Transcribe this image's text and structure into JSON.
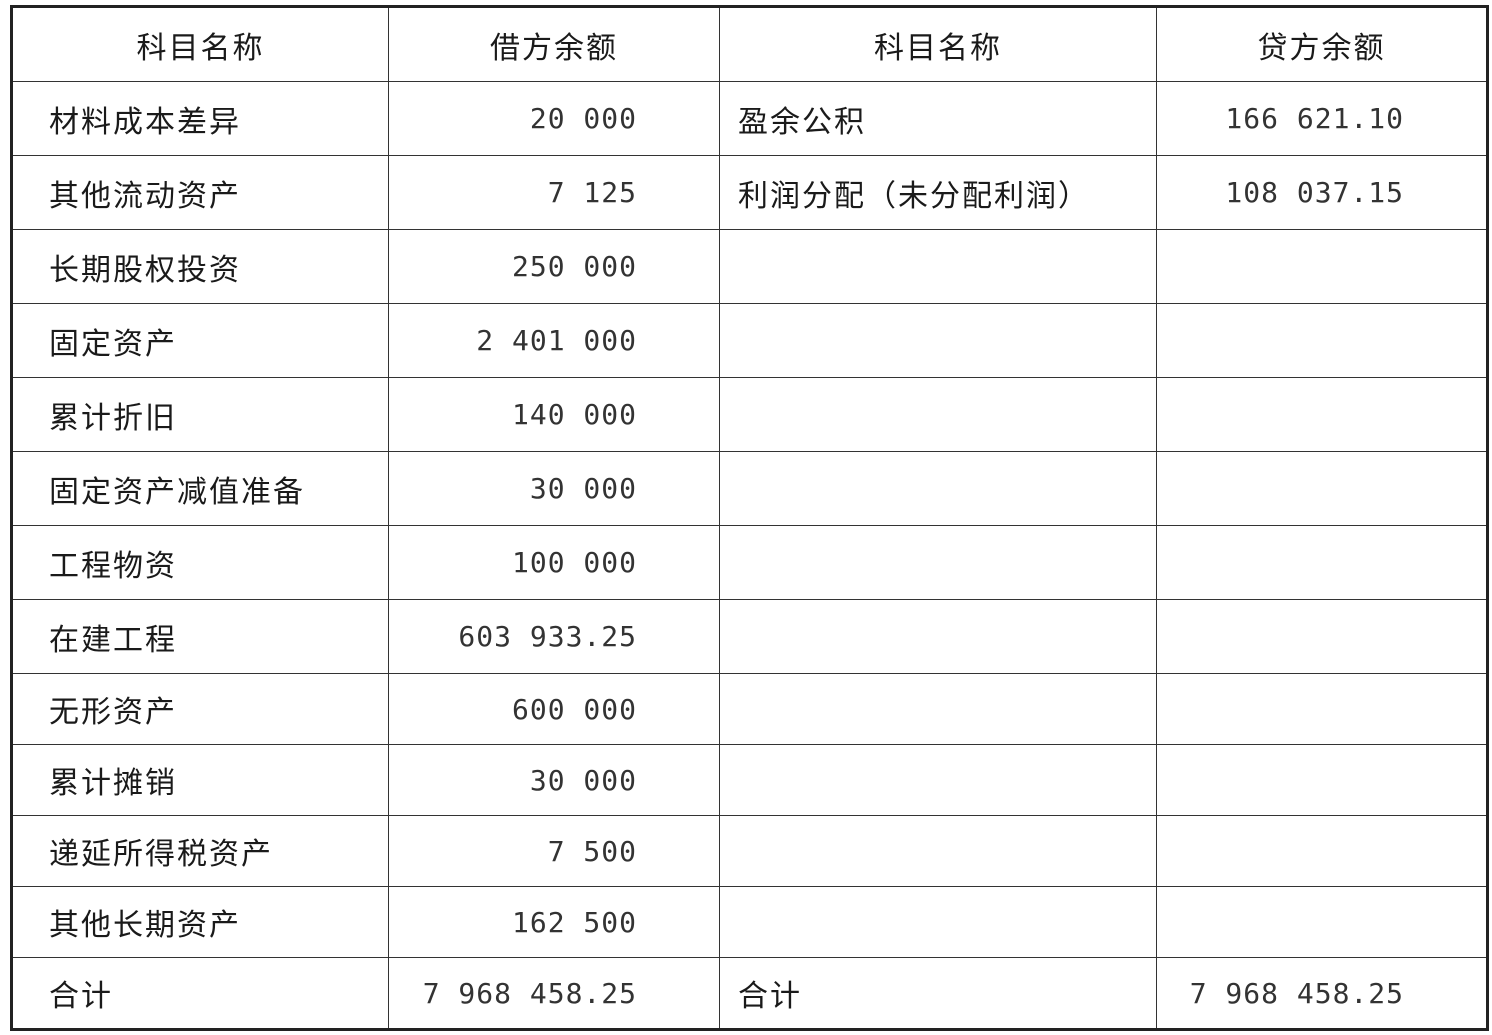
{
  "headers": [
    "科目名称",
    "借方余额",
    "科目名称",
    "贷方余额"
  ],
  "rows": [
    {
      "debit_name": "材料成本差异",
      "debit": "20 000",
      "credit_name": "盈余公积",
      "credit": "166 621.10"
    },
    {
      "debit_name": "其他流动资产",
      "debit": "7 125",
      "credit_name": "利润分配（未分配利润）",
      "credit": "108 037.15"
    },
    {
      "debit_name": "长期股权投资",
      "debit": "250 000",
      "credit_name": "",
      "credit": ""
    },
    {
      "debit_name": "固定资产",
      "debit": "2 401 000",
      "credit_name": "",
      "credit": ""
    },
    {
      "debit_name": "累计折旧",
      "debit": "140 000",
      "credit_name": "",
      "credit": ""
    },
    {
      "debit_name": "固定资产减值准备",
      "debit": "30 000",
      "credit_name": "",
      "credit": ""
    },
    {
      "debit_name": "工程物资",
      "debit": "100 000",
      "credit_name": "",
      "credit": ""
    },
    {
      "debit_name": "在建工程",
      "debit": "603 933.25",
      "credit_name": "",
      "credit": ""
    },
    {
      "debit_name": "无形资产",
      "debit": "600 000",
      "credit_name": "",
      "credit": ""
    },
    {
      "debit_name": "累计摊销",
      "debit": "30 000",
      "credit_name": "",
      "credit": ""
    },
    {
      "debit_name": "递延所得税资产",
      "debit": "7 500",
      "credit_name": "",
      "credit": ""
    },
    {
      "debit_name": "其他长期资产",
      "debit": "162 500",
      "credit_name": "",
      "credit": ""
    }
  ],
  "total": {
    "debit_name": "合计",
    "debit": "7 968 458.25",
    "credit_name": "合计",
    "credit": "7 968 458.25"
  }
}
